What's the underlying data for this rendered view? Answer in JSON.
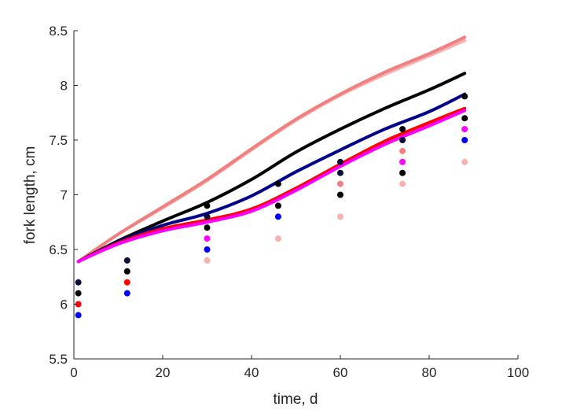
{
  "chart_data": {
    "type": "line",
    "xlabel": "time, d",
    "ylabel": "fork length, cm",
    "xlim": [
      0,
      100
    ],
    "ylim": [
      5.5,
      8.5
    ],
    "x_ticks": [
      "0",
      "20",
      "40",
      "60",
      "80",
      "100"
    ],
    "y_ticks": [
      "5.5",
      "6",
      "6.5",
      "7",
      "7.5",
      "8",
      "8.5"
    ],
    "grid": false,
    "legend": "none",
    "lines": [
      {
        "color": "#f9b0b0",
        "x": [
          1,
          10,
          20,
          30,
          40,
          50,
          60,
          70,
          80,
          88
        ],
        "y": [
          6.39,
          6.64,
          6.88,
          7.13,
          7.41,
          7.68,
          7.91,
          8.1,
          8.27,
          8.41
        ]
      },
      {
        "color": "#f08080",
        "x": [
          1,
          10,
          20,
          30,
          40,
          50,
          60,
          70,
          80,
          88
        ],
        "y": [
          6.39,
          6.64,
          6.89,
          7.14,
          7.42,
          7.69,
          7.92,
          8.12,
          8.29,
          8.44
        ]
      },
      {
        "color": "#000000",
        "x": [
          1,
          10,
          20,
          30,
          40,
          50,
          60,
          70,
          80,
          88
        ],
        "y": [
          6.39,
          6.58,
          6.76,
          6.93,
          7.14,
          7.39,
          7.6,
          7.79,
          7.96,
          8.11
        ]
      },
      {
        "color": "#00008b",
        "x": [
          1,
          10,
          20,
          30,
          40,
          50,
          60,
          70,
          80,
          88
        ],
        "y": [
          6.39,
          6.57,
          6.72,
          6.83,
          6.99,
          7.21,
          7.41,
          7.6,
          7.76,
          7.92
        ]
      },
      {
        "color": "#ff0000",
        "x": [
          1,
          10,
          20,
          30,
          40,
          50,
          60,
          70,
          80,
          88
        ],
        "y": [
          6.39,
          6.56,
          6.69,
          6.77,
          6.87,
          7.06,
          7.28,
          7.49,
          7.66,
          7.79
        ]
      },
      {
        "color": "#ff00ff",
        "x": [
          1,
          10,
          20,
          30,
          40,
          50,
          60,
          70,
          80,
          88
        ],
        "y": [
          6.39,
          6.55,
          6.67,
          6.75,
          6.85,
          7.04,
          7.26,
          7.46,
          7.63,
          7.77
        ]
      }
    ],
    "points": [
      {
        "x": 1,
        "y": 6.2,
        "color": "#0d0d3a"
      },
      {
        "x": 1,
        "y": 6.1,
        "color": "#000000"
      },
      {
        "x": 1,
        "y": 6.0,
        "color": "#ff0000"
      },
      {
        "x": 1,
        "y": 5.9,
        "color": "#0000ff"
      },
      {
        "x": 12,
        "y": 6.4,
        "color": "#0d0d3a"
      },
      {
        "x": 12,
        "y": 6.3,
        "color": "#000000"
      },
      {
        "x": 12,
        "y": 6.2,
        "color": "#ff0000"
      },
      {
        "x": 12,
        "y": 6.1,
        "color": "#0000ff"
      },
      {
        "x": 30,
        "y": 6.9,
        "color": "#000000"
      },
      {
        "x": 30,
        "y": 6.8,
        "color": "#0d0d3a"
      },
      {
        "x": 30,
        "y": 6.7,
        "color": "#000000"
      },
      {
        "x": 30,
        "y": 6.6,
        "color": "#ff00ff"
      },
      {
        "x": 30,
        "y": 6.5,
        "color": "#0000ff"
      },
      {
        "x": 30,
        "y": 6.4,
        "color": "#f9b0b0"
      },
      {
        "x": 46,
        "y": 7.1,
        "color": "#000000"
      },
      {
        "x": 46,
        "y": 6.9,
        "color": "#000000"
      },
      {
        "x": 46,
        "y": 6.8,
        "color": "#0000ff"
      },
      {
        "x": 46,
        "y": 6.6,
        "color": "#f9b0b0"
      },
      {
        "x": 60,
        "y": 7.3,
        "color": "#0d0d3a"
      },
      {
        "x": 60,
        "y": 7.2,
        "color": "#0d0d3a"
      },
      {
        "x": 60,
        "y": 7.1,
        "color": "#f08080"
      },
      {
        "x": 60,
        "y": 7.0,
        "color": "#000000"
      },
      {
        "x": 60,
        "y": 6.8,
        "color": "#f9b0b0"
      },
      {
        "x": 74,
        "y": 7.6,
        "color": "#000000"
      },
      {
        "x": 74,
        "y": 7.5,
        "color": "#0d0d3a"
      },
      {
        "x": 74,
        "y": 7.4,
        "color": "#f08080"
      },
      {
        "x": 74,
        "y": 7.3,
        "color": "#ff00ff"
      },
      {
        "x": 74,
        "y": 7.2,
        "color": "#000000"
      },
      {
        "x": 74,
        "y": 7.1,
        "color": "#f9b0b0"
      },
      {
        "x": 88,
        "y": 7.9,
        "color": "#000000"
      },
      {
        "x": 88,
        "y": 7.7,
        "color": "#000000"
      },
      {
        "x": 88,
        "y": 7.6,
        "color": "#ff00ff"
      },
      {
        "x": 88,
        "y": 7.5,
        "color": "#0000ff"
      },
      {
        "x": 88,
        "y": 7.3,
        "color": "#f9b0b0"
      }
    ]
  }
}
